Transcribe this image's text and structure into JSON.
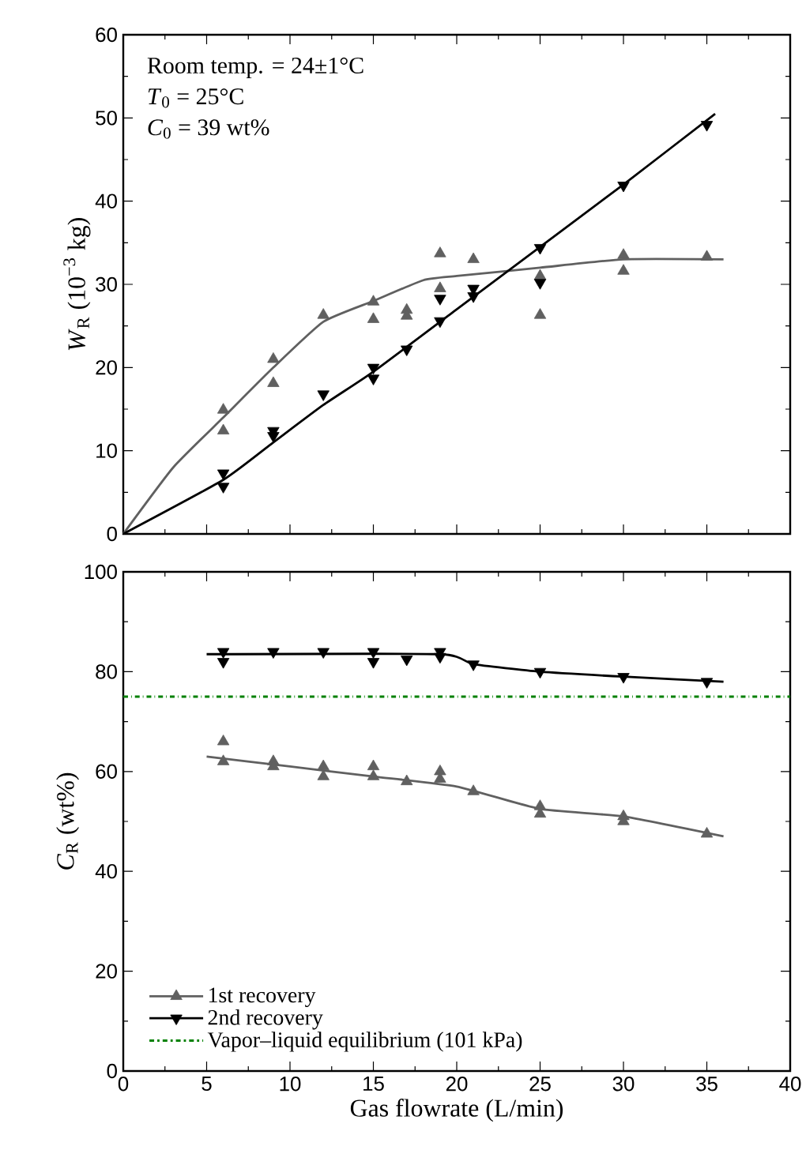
{
  "chart_data": [
    {
      "type": "scatter",
      "ylabel": "*W*$_{R}$  (10$^{−3}$ kg)",
      "xlim": [
        0,
        40
      ],
      "ylim": [
        0,
        60
      ],
      "xticks": [
        0,
        5,
        10,
        15,
        20,
        25,
        30,
        35,
        40
      ],
      "yticks": [
        0,
        10,
        20,
        30,
        40,
        50,
        60
      ],
      "tick_labels": "y",
      "annotations": [
        "Room temp. = 24±1°C",
        "*T*$_{0}$ = 25°C",
        "*C*$_{0}$ = 39 wt%"
      ],
      "series": [
        {
          "color": "#606060",
          "marker": "triangle",
          "x": [
            6,
            6,
            9,
            9,
            12,
            15,
            15,
            17,
            17,
            19,
            19,
            21,
            25,
            25,
            30,
            30,
            35
          ],
          "values": [
            14.9,
            12.4,
            21,
            18.1,
            26.3,
            27.9,
            25.8,
            26.9,
            26.2,
            33.7,
            29.5,
            33,
            31,
            26.3,
            33.5,
            31.6,
            33.3
          ]
        },
        {
          "color": "#000000",
          "marker": "triangle-down",
          "x": [
            6,
            6,
            9,
            9,
            12,
            15,
            15,
            17,
            19,
            19,
            21,
            21,
            25,
            25,
            30,
            35
          ],
          "values": [
            7.3,
            5.7,
            12.4,
            11.8,
            16.8,
            20,
            18.7,
            22.2,
            25.6,
            28.3,
            29.5,
            28.6,
            34.4,
            30.2,
            41.9,
            49.2
          ]
        },
        {
          "type": "line",
          "color": "#606060",
          "x": [
            0,
            3,
            6,
            9,
            12,
            15,
            18,
            20,
            25,
            30,
            36
          ],
          "values": [
            0,
            8,
            14,
            20,
            25.5,
            28,
            30.5,
            31,
            32,
            33,
            33
          ]
        },
        {
          "type": "line",
          "color": "#000000",
          "x": [
            0,
            6,
            9,
            12,
            15,
            20,
            25,
            30,
            35.5
          ],
          "values": [
            0,
            6.5,
            11,
            15.5,
            19.5,
            27,
            34.5,
            42,
            50.5
          ]
        }
      ]
    },
    {
      "type": "scatter",
      "xlabel": "Gas flowrate  (L/min)",
      "ylabel": "*C*$_{R}$  (wt%)",
      "xlim": [
        0,
        40
      ],
      "ylim": [
        0,
        100
      ],
      "xticks": [
        0,
        5,
        10,
        15,
        20,
        25,
        30,
        35,
        40
      ],
      "yticks": [
        0,
        20,
        40,
        60,
        80,
        100
      ],
      "legend": "bottom left",
      "ref_lines": [
        {
          "axis": "y",
          "value": 75,
          "label": "Vapor–liquid equilibrium (101 kPa)",
          "color": "#008000",
          "line_style": "dashdot"
        }
      ],
      "series": [
        {
          "name": "1st recovery",
          "color": "#606060",
          "marker": "triangle",
          "x": [
            6,
            6,
            9,
            9,
            12,
            12,
            15,
            15,
            17,
            19,
            19,
            21,
            25,
            25,
            30,
            30,
            35
          ],
          "values": [
            66,
            62,
            62,
            61,
            61,
            59,
            61,
            59,
            58,
            60,
            58.5,
            56,
            53,
            51.5,
            51,
            50,
            47.5
          ]
        },
        {
          "name": "2nd recovery",
          "color": "#000000",
          "marker": "triangle-down",
          "x": [
            6,
            6,
            9,
            12,
            15,
            15,
            17,
            19,
            19,
            21,
            25,
            30,
            35
          ],
          "values": [
            84,
            82,
            84,
            84,
            84,
            82,
            82.5,
            84,
            83,
            81.5,
            80,
            79,
            78
          ]
        },
        {
          "type": "line",
          "color": "#606060",
          "x": [
            5,
            10,
            15,
            20,
            25,
            30,
            36
          ],
          "values": [
            63,
            61,
            59,
            57,
            52.5,
            51,
            47
          ]
        },
        {
          "type": "line",
          "color": "#000000",
          "x": [
            5,
            19,
            21,
            25,
            30,
            36
          ],
          "values": [
            83.5,
            83.5,
            81.5,
            80,
            79,
            78
          ]
        }
      ]
    }
  ]
}
